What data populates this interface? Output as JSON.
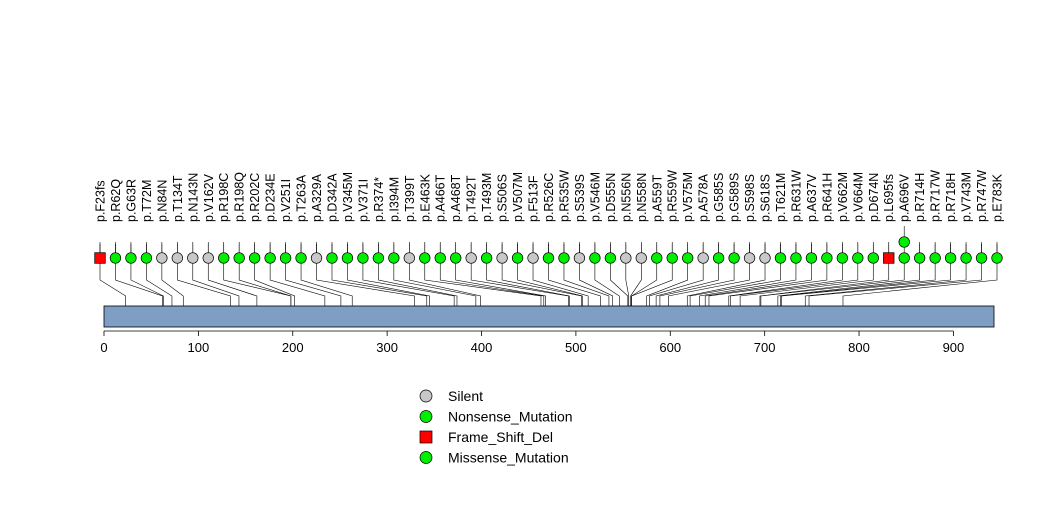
{
  "chart_data": {
    "type": "lollipop",
    "xaxis": {
      "range": [
        0,
        943
      ],
      "ticks": [
        0,
        100,
        200,
        300,
        400,
        500,
        600,
        700,
        800,
        900
      ]
    },
    "protein_length": 943,
    "colors": {
      "Silent": "#c8c8c8",
      "Nonsense_Mutation": "#00ee00",
      "Frame_Shift_Del": "#ff0000",
      "Missense_Mutation": "#00ee00",
      "domain": "#7f9ec4"
    },
    "legend": [
      {
        "label": "Silent",
        "shape": "circle",
        "color": "#c8c8c8"
      },
      {
        "label": "Nonsense_Mutation",
        "shape": "circle",
        "color": "#00ee00"
      },
      {
        "label": "Frame_Shift_Del",
        "shape": "square",
        "color": "#ff0000"
      },
      {
        "label": "Missense_Mutation",
        "shape": "circle",
        "color": "#00ee00"
      }
    ],
    "mutations": [
      {
        "label": "p.F23fs",
        "pos": 23,
        "type": "Frame_Shift_Del",
        "count": 1
      },
      {
        "label": "p.R62Q",
        "pos": 62,
        "type": "Missense_Mutation",
        "count": 1
      },
      {
        "label": "p.G63R",
        "pos": 63,
        "type": "Missense_Mutation",
        "count": 1
      },
      {
        "label": "p.T72M",
        "pos": 72,
        "type": "Missense_Mutation",
        "count": 1
      },
      {
        "label": "p.N84N",
        "pos": 84,
        "type": "Silent",
        "count": 1
      },
      {
        "label": "p.T134T",
        "pos": 134,
        "type": "Silent",
        "count": 1
      },
      {
        "label": "p.N143N",
        "pos": 143,
        "type": "Silent",
        "count": 1
      },
      {
        "label": "p.V162V",
        "pos": 162,
        "type": "Silent",
        "count": 1
      },
      {
        "label": "p.R198C",
        "pos": 198,
        "type": "Missense_Mutation",
        "count": 1
      },
      {
        "label": "p.R198Q",
        "pos": 198,
        "type": "Missense_Mutation",
        "count": 1
      },
      {
        "label": "p.R202C",
        "pos": 202,
        "type": "Missense_Mutation",
        "count": 1
      },
      {
        "label": "p.D234E",
        "pos": 234,
        "type": "Missense_Mutation",
        "count": 1
      },
      {
        "label": "p.V251I",
        "pos": 251,
        "type": "Missense_Mutation",
        "count": 1
      },
      {
        "label": "p.T263A",
        "pos": 263,
        "type": "Missense_Mutation",
        "count": 1
      },
      {
        "label": "p.A329A",
        "pos": 329,
        "type": "Silent",
        "count": 1
      },
      {
        "label": "p.D342A",
        "pos": 342,
        "type": "Missense_Mutation",
        "count": 1
      },
      {
        "label": "p.V345M",
        "pos": 345,
        "type": "Missense_Mutation",
        "count": 1
      },
      {
        "label": "p.V371I",
        "pos": 371,
        "type": "Missense_Mutation",
        "count": 1
      },
      {
        "label": "p.R374*",
        "pos": 374,
        "type": "Nonsense_Mutation",
        "count": 1
      },
      {
        "label": "p.I394M",
        "pos": 394,
        "type": "Missense_Mutation",
        "count": 1
      },
      {
        "label": "p.T399T",
        "pos": 399,
        "type": "Silent",
        "count": 1
      },
      {
        "label": "p.E463K",
        "pos": 463,
        "type": "Missense_Mutation",
        "count": 1
      },
      {
        "label": "p.A466T",
        "pos": 466,
        "type": "Missense_Mutation",
        "count": 1
      },
      {
        "label": "p.A468T",
        "pos": 468,
        "type": "Missense_Mutation",
        "count": 1
      },
      {
        "label": "p.T492T",
        "pos": 492,
        "type": "Silent",
        "count": 1
      },
      {
        "label": "p.T493M",
        "pos": 493,
        "type": "Missense_Mutation",
        "count": 1
      },
      {
        "label": "p.S506S",
        "pos": 506,
        "type": "Silent",
        "count": 1
      },
      {
        "label": "p.V507M",
        "pos": 507,
        "type": "Missense_Mutation",
        "count": 1
      },
      {
        "label": "p.F513F",
        "pos": 513,
        "type": "Silent",
        "count": 1
      },
      {
        "label": "p.R526C",
        "pos": 526,
        "type": "Missense_Mutation",
        "count": 1
      },
      {
        "label": "p.R535W",
        "pos": 535,
        "type": "Missense_Mutation",
        "count": 1
      },
      {
        "label": "p.S539S",
        "pos": 539,
        "type": "Silent",
        "count": 1
      },
      {
        "label": "p.V546M",
        "pos": 546,
        "type": "Missense_Mutation",
        "count": 1
      },
      {
        "label": "p.D555N",
        "pos": 555,
        "type": "Missense_Mutation",
        "count": 1
      },
      {
        "label": "p.N556N",
        "pos": 556,
        "type": "Silent",
        "count": 1
      },
      {
        "label": "p.N558N",
        "pos": 558,
        "type": "Silent",
        "count": 1
      },
      {
        "label": "p.A559T",
        "pos": 559,
        "type": "Missense_Mutation",
        "count": 1
      },
      {
        "label": "p.R559W",
        "pos": 559,
        "type": "Missense_Mutation",
        "count": 1
      },
      {
        "label": "p.V575M",
        "pos": 575,
        "type": "Missense_Mutation",
        "count": 1
      },
      {
        "label": "p.A578A",
        "pos": 578,
        "type": "Silent",
        "count": 1
      },
      {
        "label": "p.G585S",
        "pos": 585,
        "type": "Missense_Mutation",
        "count": 1
      },
      {
        "label": "p.G589S",
        "pos": 589,
        "type": "Missense_Mutation",
        "count": 1
      },
      {
        "label": "p.S598S",
        "pos": 598,
        "type": "Silent",
        "count": 1
      },
      {
        "label": "p.S618S",
        "pos": 618,
        "type": "Silent",
        "count": 1
      },
      {
        "label": "p.T621M",
        "pos": 621,
        "type": "Missense_Mutation",
        "count": 1
      },
      {
        "label": "p.R631W",
        "pos": 631,
        "type": "Missense_Mutation",
        "count": 1
      },
      {
        "label": "p.A637V",
        "pos": 637,
        "type": "Missense_Mutation",
        "count": 1
      },
      {
        "label": "p.R641H",
        "pos": 641,
        "type": "Missense_Mutation",
        "count": 1
      },
      {
        "label": "p.V662M",
        "pos": 662,
        "type": "Missense_Mutation",
        "count": 1
      },
      {
        "label": "p.V664M",
        "pos": 664,
        "type": "Missense_Mutation",
        "count": 1
      },
      {
        "label": "p.D674N",
        "pos": 674,
        "type": "Missense_Mutation",
        "count": 1
      },
      {
        "label": "p.L695fs",
        "pos": 695,
        "type": "Frame_Shift_Del",
        "count": 1
      },
      {
        "label": "p.A696V",
        "pos": 696,
        "type": "Missense_Mutation",
        "count": 2
      },
      {
        "label": "p.R714H",
        "pos": 714,
        "type": "Missense_Mutation",
        "count": 1
      },
      {
        "label": "p.R717W",
        "pos": 717,
        "type": "Missense_Mutation",
        "count": 1
      },
      {
        "label": "p.R718H",
        "pos": 718,
        "type": "Missense_Mutation",
        "count": 1
      },
      {
        "label": "p.V743M",
        "pos": 743,
        "type": "Missense_Mutation",
        "count": 1
      },
      {
        "label": "p.R747W",
        "pos": 747,
        "type": "Missense_Mutation",
        "count": 1
      },
      {
        "label": "p.E783K",
        "pos": 783,
        "type": "Missense_Mutation",
        "count": 1
      }
    ]
  }
}
